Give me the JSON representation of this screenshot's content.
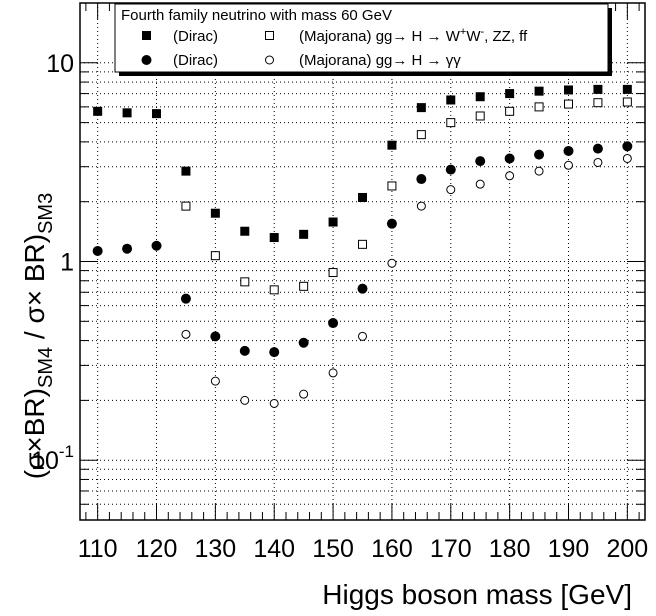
{
  "chart_data": {
    "type": "scatter",
    "title": "",
    "xlabel": "Higgs boson mass [GeV]",
    "ylabel": "(σ×BR)",
    "ylabel_sub1": "SM4",
    "ylabel_mid": " / σ× BR)",
    "ylabel_sub2": "SM3",
    "xlim": [
      107,
      203
    ],
    "ylim": [
      0.05,
      20
    ],
    "log_y": true,
    "grid": true,
    "x_ticks": [
      110,
      120,
      130,
      140,
      150,
      160,
      170,
      180,
      190,
      200
    ],
    "x_tick_labels": [
      "110",
      "120",
      "130",
      "140",
      "150",
      "160",
      "170",
      "180",
      "190",
      "200"
    ],
    "y_ticks": [
      0.1,
      1,
      10
    ],
    "y_tick_labels": [
      {
        "base": "10",
        "exp": "-1"
      },
      {
        "base": "1",
        "exp": ""
      },
      {
        "base": "10",
        "exp": ""
      }
    ],
    "legend": {
      "placement": "top",
      "title": "Fourth family neutrino with mass 60 GeV",
      "row1_left": "(Dirac)",
      "row1_right_pre": "(Majorana) gg→ H → W",
      "row1_sup1": "+",
      "row1_mid": "W",
      "row1_sup2": "-",
      "row1_end": ", ZZ, ff",
      "row2_left": "(Dirac)",
      "row2_right": "(Majorana) gg→ H → γγ"
    },
    "series": [
      {
        "marker": "filled-square",
        "x": [
          110,
          115,
          120,
          125,
          130,
          135,
          140,
          145,
          150,
          155,
          160,
          165,
          170,
          175,
          180,
          185,
          190,
          195,
          200
        ],
        "values": [
          5.7,
          5.6,
          5.55,
          2.85,
          1.75,
          1.42,
          1.32,
          1.37,
          1.58,
          2.1,
          3.85,
          5.95,
          6.5,
          6.75,
          7.0,
          7.2,
          7.3,
          7.35,
          7.35
        ]
      },
      {
        "marker": "open-square",
        "x": [
          125,
          130,
          135,
          140,
          145,
          150,
          155,
          160,
          165,
          170,
          175,
          180,
          185,
          190,
          195,
          200
        ],
        "values": [
          1.9,
          1.07,
          0.79,
          0.72,
          0.75,
          0.88,
          1.22,
          2.4,
          4.35,
          5.0,
          5.4,
          5.7,
          6.0,
          6.2,
          6.3,
          6.35
        ]
      },
      {
        "marker": "filled-circle",
        "x": [
          110,
          115,
          120,
          125,
          130,
          135,
          140,
          145,
          150,
          155,
          160,
          165,
          170,
          175,
          180,
          185,
          190,
          195,
          200
        ],
        "values": [
          1.13,
          1.16,
          1.2,
          0.65,
          0.42,
          0.355,
          0.35,
          0.39,
          0.49,
          0.73,
          1.55,
          2.6,
          2.9,
          3.2,
          3.3,
          3.45,
          3.6,
          3.7,
          3.8
        ]
      },
      {
        "marker": "open-circle",
        "x": [
          125,
          130,
          135,
          140,
          145,
          150,
          155,
          160,
          165,
          170,
          175,
          180,
          185,
          190,
          195,
          200
        ],
        "values": [
          0.43,
          0.25,
          0.2,
          0.193,
          0.215,
          0.275,
          0.42,
          0.98,
          1.9,
          2.3,
          2.45,
          2.7,
          2.85,
          3.05,
          3.15,
          3.3
        ]
      }
    ]
  }
}
